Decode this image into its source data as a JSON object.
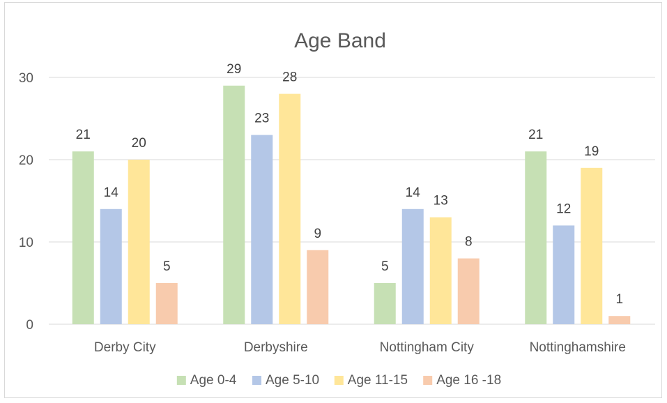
{
  "chart_data": {
    "type": "bar",
    "title": "Age Band",
    "xlabel": "",
    "ylabel": "",
    "categories": [
      "Derby City",
      "Derbyshire",
      "Nottingham City",
      "Nottinghamshire"
    ],
    "series": [
      {
        "name": "Age 0-4",
        "values": [
          21,
          29,
          5,
          21
        ],
        "color": "#c6e0b4"
      },
      {
        "name": "Age 5-10",
        "values": [
          14,
          23,
          14,
          12
        ],
        "color": "#b4c7e7"
      },
      {
        "name": "Age 11-15",
        "values": [
          20,
          28,
          13,
          19
        ],
        "color": "#ffe699"
      },
      {
        "name": "Age 16 -18",
        "values": [
          5,
          9,
          8,
          1
        ],
        "color": "#f8cbad"
      }
    ],
    "ylim": [
      0,
      30
    ],
    "yticks": [
      0,
      10,
      20,
      30
    ],
    "grid": true,
    "legend": "bottom",
    "data_labels": true
  }
}
